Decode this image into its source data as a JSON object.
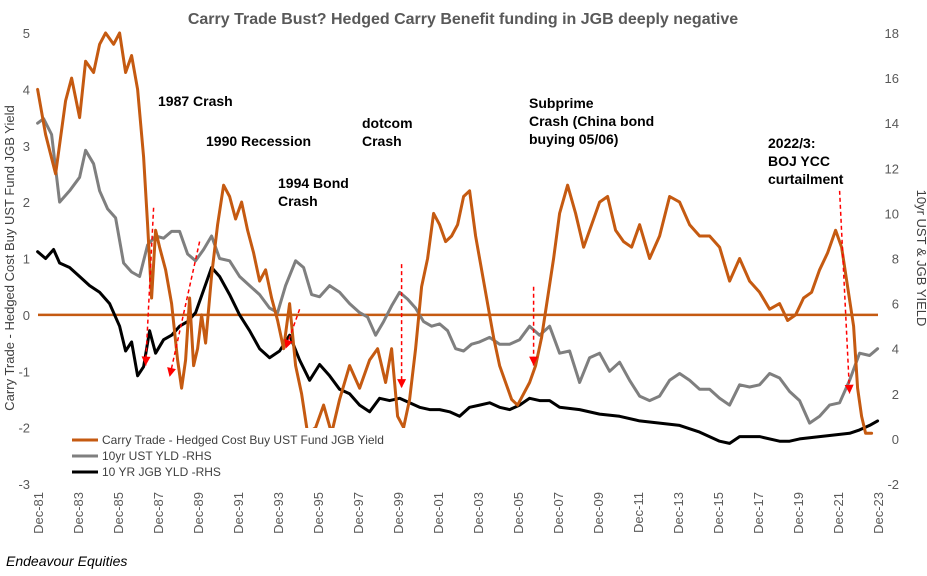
{
  "chart_data": {
    "type": "line",
    "title": "Carry Trade Bust?   Hedged Carry Benefit funding in JGB deeply negative",
    "ylabel_left": "Carry Trade - Hedged Cost Buy UST Fund JGB Yield",
    "ylabel_right": "10yr UST  & JGB YIELD",
    "ylim_left": [
      -3,
      5
    ],
    "yticks_left": [
      5,
      4,
      3,
      2,
      1,
      0,
      -1,
      -2,
      -3
    ],
    "ylim_right": [
      -2,
      18
    ],
    "yticks_right": [
      18,
      16,
      14,
      12,
      10,
      8,
      6,
      4,
      2,
      0,
      -2
    ],
    "xlim": [
      1981.92,
      2023.92
    ],
    "xtick_labels": [
      "Dec-81",
      "Dec-83",
      "Dec-85",
      "Dec-87",
      "Dec-89",
      "Dec-91",
      "Dec-93",
      "Dec-95",
      "Dec-97",
      "Dec-99",
      "Dec-01",
      "Dec-03",
      "Dec-05",
      "Dec-07",
      "Dec-09",
      "Dec-11",
      "Dec-13",
      "Dec-15",
      "Dec-17",
      "Dec-19",
      "Dec-21",
      "Dec-23"
    ],
    "grid": false,
    "legend_position": "bottom-left",
    "zero_line": 0,
    "series": [
      {
        "name": "Carry Trade - Hedged Cost Buy UST Fund JGB Yield",
        "axis": "left",
        "color": "#C55A11",
        "x": [
          1981.9,
          1982.3,
          1982.8,
          1983.3,
          1983.6,
          1984.0,
          1984.3,
          1984.7,
          1985.0,
          1985.3,
          1985.7,
          1986.0,
          1986.3,
          1986.6,
          1986.9,
          1987.2,
          1987.4,
          1987.6,
          1987.8,
          1988.0,
          1988.3,
          1988.6,
          1988.9,
          1989.1,
          1989.3,
          1989.5,
          1989.7,
          1989.9,
          1990.1,
          1990.3,
          1990.6,
          1990.9,
          1991.2,
          1991.5,
          1991.8,
          1992.1,
          1992.4,
          1992.7,
          1993.0,
          1993.3,
          1993.6,
          1993.9,
          1994.2,
          1994.5,
          1994.8,
          1995.1,
          1995.4,
          1995.8,
          1996.2,
          1996.6,
          1997.0,
          1997.5,
          1998.0,
          1998.5,
          1998.9,
          1999.3,
          1999.6,
          1999.9,
          2000.2,
          2000.5,
          2000.8,
          2001.1,
          2001.4,
          2001.7,
          2002.0,
          2002.3,
          2002.6,
          2002.9,
          2003.2,
          2003.5,
          2003.8,
          2004.1,
          2004.4,
          2004.7,
          2005.0,
          2005.3,
          2005.6,
          2005.9,
          2006.2,
          2006.5,
          2006.8,
          2007.1,
          2007.4,
          2007.7,
          2008.0,
          2008.4,
          2008.8,
          2009.2,
          2009.6,
          2010.0,
          2010.4,
          2010.8,
          2011.2,
          2011.6,
          2012.0,
          2012.5,
          2013.0,
          2013.5,
          2014.0,
          2014.5,
          2015.0,
          2015.5,
          2016.0,
          2016.5,
          2017.0,
          2017.5,
          2018.0,
          2018.5,
          2019.0,
          2019.4,
          2019.8,
          2020.2,
          2020.6,
          2021.0,
          2021.4,
          2021.8,
          2022.1,
          2022.4,
          2022.7,
          2022.9,
          2023.1,
          2023.3,
          2023.6
        ],
        "y": [
          4.0,
          3.2,
          2.5,
          3.8,
          4.2,
          3.5,
          4.5,
          4.3,
          4.8,
          5.0,
          4.8,
          5.0,
          4.3,
          4.6,
          4.0,
          2.8,
          1.6,
          0.3,
          1.5,
          1.2,
          0.8,
          0.2,
          -0.8,
          -1.3,
          -0.8,
          0.3,
          -0.9,
          -0.6,
          0.0,
          -0.5,
          0.7,
          1.6,
          2.3,
          2.1,
          1.7,
          2.0,
          1.5,
          1.1,
          0.6,
          0.8,
          0.3,
          -0.1,
          -0.6,
          0.2,
          -0.9,
          -1.4,
          -2.1,
          -2.0,
          -1.6,
          -2.1,
          -1.5,
          -0.9,
          -1.3,
          -0.8,
          -0.6,
          -1.2,
          -0.6,
          -1.8,
          -2.0,
          -1.5,
          -0.6,
          0.5,
          1.0,
          1.8,
          1.6,
          1.3,
          1.4,
          1.6,
          2.1,
          2.2,
          1.4,
          0.8,
          0.2,
          -0.4,
          -0.9,
          -1.2,
          -1.5,
          -1.6,
          -1.4,
          -1.2,
          -0.9,
          -0.4,
          0.3,
          1.0,
          1.8,
          2.3,
          1.8,
          1.2,
          1.6,
          2.0,
          2.1,
          1.5,
          1.3,
          1.2,
          1.6,
          1.0,
          1.4,
          2.1,
          2.0,
          1.6,
          1.4,
          1.4,
          1.2,
          0.6,
          1.0,
          0.6,
          0.4,
          0.1,
          0.2,
          -0.1,
          0.0,
          0.3,
          0.4,
          0.8,
          1.1,
          1.5,
          1.2,
          0.5,
          -0.2,
          -1.3,
          -1.8,
          -2.1,
          -2.1
        ]
      },
      {
        "name": "10yr UST YLD -RHS",
        "axis": "right",
        "color": "#7F7F7F",
        "x": [
          1981.9,
          1982.2,
          1982.6,
          1983.0,
          1983.5,
          1984.0,
          1984.3,
          1984.7,
          1985.0,
          1985.4,
          1985.8,
          1986.2,
          1986.6,
          1987.0,
          1987.4,
          1987.8,
          1988.2,
          1988.6,
          1989.0,
          1989.4,
          1989.8,
          1990.2,
          1990.6,
          1991.0,
          1991.5,
          1992.0,
          1992.5,
          1993.0,
          1993.5,
          1993.9,
          1994.3,
          1994.8,
          1995.2,
          1995.6,
          1996.0,
          1996.5,
          1997.0,
          1997.5,
          1998.0,
          1998.4,
          1998.8,
          1999.2,
          1999.6,
          2000.0,
          2000.4,
          2000.8,
          2001.2,
          2001.6,
          2002.0,
          2002.4,
          2002.8,
          2003.2,
          2003.6,
          2004.0,
          2004.5,
          2005.0,
          2005.5,
          2006.0,
          2006.5,
          2007.0,
          2007.5,
          2008.0,
          2008.5,
          2009.0,
          2009.5,
          2010.0,
          2010.5,
          2011.0,
          2011.5,
          2012.0,
          2012.5,
          2013.0,
          2013.5,
          2014.0,
          2014.5,
          2015.0,
          2015.5,
          2016.0,
          2016.5,
          2017.0,
          2017.5,
          2018.0,
          2018.5,
          2019.0,
          2019.5,
          2020.0,
          2020.5,
          2021.0,
          2021.5,
          2022.0,
          2022.5,
          2023.0,
          2023.5,
          2023.9
        ],
        "y": [
          14.0,
          14.2,
          13.5,
          10.5,
          11.0,
          11.6,
          12.8,
          12.2,
          11.0,
          10.2,
          9.8,
          7.8,
          7.4,
          7.2,
          8.6,
          9.0,
          8.9,
          9.2,
          9.2,
          8.2,
          7.9,
          8.4,
          9.0,
          8.0,
          7.9,
          7.2,
          6.8,
          6.4,
          5.8,
          5.6,
          6.8,
          7.9,
          7.6,
          6.4,
          6.3,
          6.8,
          6.5,
          6.0,
          5.6,
          5.4,
          4.6,
          5.2,
          5.9,
          6.5,
          6.2,
          5.8,
          5.2,
          5.0,
          5.1,
          4.8,
          4.0,
          3.9,
          4.2,
          4.3,
          4.5,
          4.2,
          4.2,
          4.4,
          5.0,
          4.6,
          5.0,
          3.8,
          3.9,
          2.5,
          3.6,
          3.8,
          3.0,
          3.4,
          2.6,
          1.9,
          1.7,
          1.9,
          2.6,
          2.9,
          2.6,
          2.2,
          2.2,
          1.8,
          1.5,
          2.4,
          2.3,
          2.4,
          2.9,
          2.7,
          2.1,
          1.7,
          0.7,
          1.0,
          1.5,
          1.6,
          2.6,
          3.8,
          3.7,
          4.0
        ]
      },
      {
        "name": "10 YR JGB YLD -RHS",
        "axis": "right",
        "color": "#000000",
        "x": [
          1981.9,
          1982.3,
          1982.7,
          1983.0,
          1983.5,
          1984.0,
          1984.5,
          1985.0,
          1985.5,
          1986.0,
          1986.3,
          1986.6,
          1986.9,
          1987.2,
          1987.5,
          1987.8,
          1988.2,
          1988.6,
          1989.0,
          1989.4,
          1989.8,
          1990.2,
          1990.6,
          1991.0,
          1991.5,
          1992.0,
          1992.5,
          1993.0,
          1993.5,
          1994.0,
          1994.5,
          1995.0,
          1995.5,
          1996.0,
          1996.5,
          1997.0,
          1997.5,
          1998.0,
          1998.5,
          1999.0,
          1999.5,
          2000.0,
          2000.5,
          2001.0,
          2001.5,
          2002.0,
          2002.5,
          2003.0,
          2003.5,
          2004.0,
          2004.5,
          2005.0,
          2005.5,
          2006.0,
          2006.5,
          2007.0,
          2007.5,
          2008.0,
          2009.0,
          2010.0,
          2011.0,
          2012.0,
          2013.0,
          2014.0,
          2015.0,
          2016.0,
          2016.5,
          2017.0,
          2018.0,
          2019.0,
          2019.5,
          2020.0,
          2021.0,
          2022.0,
          2022.5,
          2023.0,
          2023.5,
          2023.9
        ],
        "y": [
          8.3,
          8.0,
          8.4,
          7.8,
          7.6,
          7.2,
          6.8,
          6.5,
          6.0,
          5.0,
          3.9,
          4.3,
          2.8,
          3.2,
          4.8,
          3.8,
          4.4,
          4.6,
          5.0,
          5.2,
          5.6,
          6.6,
          7.6,
          7.2,
          6.4,
          5.5,
          4.8,
          4.0,
          3.6,
          3.9,
          4.6,
          3.5,
          2.6,
          3.3,
          2.8,
          2.2,
          2.0,
          1.5,
          1.2,
          1.8,
          1.7,
          1.8,
          1.6,
          1.4,
          1.3,
          1.3,
          1.2,
          1.0,
          1.4,
          1.5,
          1.6,
          1.4,
          1.3,
          1.5,
          1.8,
          1.7,
          1.7,
          1.4,
          1.3,
          1.1,
          1.0,
          0.8,
          0.7,
          0.6,
          0.3,
          -0.1,
          -0.2,
          0.1,
          0.1,
          -0.1,
          -0.1,
          0.0,
          0.1,
          0.2,
          0.25,
          0.4,
          0.6,
          0.8
        ]
      }
    ],
    "annotations": [
      {
        "lines": [
          "1987 Crash"
        ],
        "arrow_from": [
          1987.7,
          1.9
        ],
        "arrow_to": [
          1987.3,
          -0.9
        ]
      },
      {
        "lines": [
          "1990 Recession"
        ],
        "arrow_from": [
          1990.0,
          1.3
        ],
        "arrow_to": [
          1988.5,
          -1.1
        ]
      },
      {
        "lines": [
          "1994 Bond",
          "Crash"
        ],
        "arrow_from": [
          1995.0,
          0.1
        ],
        "arrow_to": [
          1994.3,
          -0.6
        ]
      },
      {
        "lines": [
          "dotcom",
          "Crash"
        ],
        "arrow_from": [
          2000.1,
          0.9
        ],
        "arrow_to": [
          2000.1,
          -1.3
        ]
      },
      {
        "lines": [
          "Subprime",
          "Crash (China bond",
          "buying 05/06)"
        ],
        "arrow_from": [
          2006.7,
          0.5
        ],
        "arrow_to": [
          2006.7,
          -0.9
        ]
      },
      {
        "lines": [
          "2022/3:",
          "BOJ YCC",
          "curtailment"
        ],
        "arrow_from": [
          2022.0,
          2.2
        ],
        "arrow_to": [
          2022.5,
          -1.4
        ]
      }
    ],
    "footer": "Endeavour Equities"
  }
}
